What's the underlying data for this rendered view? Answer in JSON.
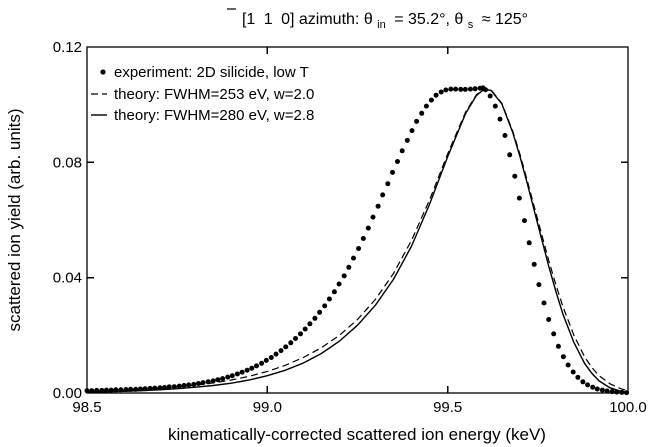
{
  "chart_data": {
    "type": "line",
    "title_parts": {
      "prefix": "[1",
      "overbar_digit": "1",
      "suffix": "0] azimuth: θ",
      "sub_in": "in",
      "middle": "= 35.2°,  θ",
      "sub_s": "s",
      "end": "≈ 125°"
    },
    "xlabel": "kinematically-corrected scattered ion energy (keV)",
    "ylabel": "scattered ion yield (arb. units)",
    "xlim": [
      98.5,
      100.0
    ],
    "ylim": [
      0.0,
      0.12
    ],
    "xticks": [
      98.5,
      99.0,
      99.5,
      100.0
    ],
    "xtick_labels": [
      "98.5",
      "99.0",
      "99.5",
      "100.0"
    ],
    "yticks": [
      0.0,
      0.04,
      0.08,
      0.12
    ],
    "ytick_labels": [
      "0.00",
      "0.04",
      "0.08",
      "0.12"
    ],
    "grid": false,
    "legend_position": "top-left",
    "series": [
      {
        "name": "experiment: 2D silicide, low T",
        "style": "dots",
        "color": "#000000",
        "x": [
          98.5,
          98.513,
          98.527,
          98.541,
          98.554,
          98.567,
          98.58,
          98.594,
          98.608,
          98.621,
          98.635,
          98.648,
          98.661,
          98.675,
          98.688,
          98.702,
          98.715,
          98.728,
          98.742,
          98.756,
          98.769,
          98.782,
          98.796,
          98.809,
          98.822,
          98.836,
          98.85,
          98.863,
          98.876,
          98.89,
          98.903,
          98.917,
          98.93,
          98.944,
          98.957,
          98.97,
          98.984,
          98.997,
          99.011,
          99.024,
          99.038,
          99.051,
          99.065,
          99.078,
          99.092,
          99.105,
          99.118,
          99.132,
          99.145,
          99.159,
          99.172,
          99.186,
          99.199,
          99.213,
          99.226,
          99.239,
          99.253,
          99.266,
          99.28,
          99.293,
          99.307,
          99.32,
          99.334,
          99.347,
          99.361,
          99.374,
          99.388,
          99.401,
          99.414,
          99.428,
          99.441,
          99.455,
          99.468,
          99.482,
          99.495,
          99.509,
          99.522,
          99.536,
          99.549,
          99.563,
          99.576,
          99.59,
          99.598,
          99.605,
          99.618,
          99.632,
          99.645,
          99.659,
          99.672,
          99.686,
          99.699,
          99.713,
          99.726,
          99.74,
          99.753,
          99.767,
          99.78,
          99.794,
          99.807,
          99.821,
          99.834,
          99.848,
          99.861,
          99.875,
          99.888,
          99.902,
          99.915,
          99.929,
          99.942,
          99.956,
          99.969,
          99.983,
          99.996
        ],
        "y": [
          0.0008,
          0.0008,
          0.0009,
          0.0009,
          0.001,
          0.001,
          0.0011,
          0.0011,
          0.0012,
          0.0013,
          0.0013,
          0.0014,
          0.0015,
          0.0016,
          0.0017,
          0.0018,
          0.0019,
          0.0021,
          0.0022,
          0.0024,
          0.0026,
          0.0028,
          0.003,
          0.0033,
          0.0036,
          0.0039,
          0.0042,
          0.0046,
          0.005,
          0.0055,
          0.006,
          0.0066,
          0.0072,
          0.0079,
          0.0086,
          0.0094,
          0.0103,
          0.0113,
          0.0123,
          0.0135,
          0.0147,
          0.016,
          0.0174,
          0.0189,
          0.0205,
          0.0222,
          0.024,
          0.0259,
          0.028,
          0.0302,
          0.0326,
          0.0351,
          0.0378,
          0.0406,
          0.0436,
          0.0468,
          0.0501,
          0.0536,
          0.0572,
          0.061,
          0.0648,
          0.0687,
          0.0726,
          0.0765,
          0.0803,
          0.084,
          0.0876,
          0.091,
          0.0942,
          0.097,
          0.0995,
          0.1016,
          0.1033,
          0.1044,
          0.1051,
          0.1054,
          0.1054,
          0.1053,
          0.1053,
          0.1054,
          0.1055,
          0.1057,
          0.1058,
          0.1052,
          0.103,
          0.0995,
          0.095,
          0.0893,
          0.0826,
          0.0752,
          0.0676,
          0.0598,
          0.0521,
          0.0446,
          0.0376,
          0.0312,
          0.0255,
          0.0205,
          0.0162,
          0.0126,
          0.0097,
          0.0073,
          0.0054,
          0.0039,
          0.0028,
          0.002,
          0.0014,
          0.001,
          0.0007,
          0.0005,
          0.0003,
          0.0002,
          0.0001
        ]
      },
      {
        "name": "theory: FWHM=253 eV, w=2.0",
        "style": "dashed",
        "color": "#000000",
        "x": [
          98.5,
          98.55,
          98.6,
          98.65,
          98.7,
          98.75,
          98.8,
          98.85,
          98.9,
          98.95,
          99.0,
          99.05,
          99.1,
          99.15,
          99.2,
          99.25,
          99.3,
          99.35,
          99.4,
          99.45,
          99.5,
          99.55,
          99.58,
          99.6,
          99.62,
          99.65,
          99.68,
          99.7,
          99.72,
          99.75,
          99.78,
          99.8,
          99.82,
          99.85,
          99.88,
          99.9,
          99.92,
          99.95,
          99.98,
          100.0
        ],
        "y": [
          0.0005,
          0.0007,
          0.0009,
          0.0012,
          0.0016,
          0.0021,
          0.0027,
          0.0035,
          0.0045,
          0.0058,
          0.0075,
          0.0096,
          0.0123,
          0.0157,
          0.02,
          0.0255,
          0.0325,
          0.0415,
          0.053,
          0.067,
          0.083,
          0.0975,
          0.1035,
          0.1055,
          0.1052,
          0.1005,
          0.091,
          0.083,
          0.074,
          0.06,
          0.046,
          0.0375,
          0.0298,
          0.02,
          0.0125,
          0.0088,
          0.006,
          0.0032,
          0.0015,
          0.0008
        ]
      },
      {
        "name": "theory: FWHM=280 eV, w=2.8",
        "style": "solid",
        "color": "#000000",
        "x": [
          98.5,
          98.55,
          98.6,
          98.65,
          98.7,
          98.75,
          98.8,
          98.85,
          98.9,
          98.95,
          99.0,
          99.05,
          99.1,
          99.15,
          99.2,
          99.25,
          99.3,
          99.35,
          99.4,
          99.45,
          99.5,
          99.55,
          99.58,
          99.6,
          99.62,
          99.65,
          99.68,
          99.7,
          99.72,
          99.75,
          99.78,
          99.8,
          99.82,
          99.85,
          99.88,
          99.9,
          99.92,
          99.95,
          99.98,
          100.0
        ],
        "y": [
          0.0003,
          0.0004,
          0.0006,
          0.0008,
          0.0011,
          0.0015,
          0.002,
          0.0026,
          0.0034,
          0.0045,
          0.006,
          0.0079,
          0.0104,
          0.0137,
          0.018,
          0.0235,
          0.0305,
          0.0395,
          0.051,
          0.0655,
          0.082,
          0.097,
          0.1032,
          0.1052,
          0.105,
          0.1003,
          0.0905,
          0.0822,
          0.073,
          0.0585,
          0.044,
          0.0352,
          0.0272,
          0.0175,
          0.0102,
          0.0068,
          0.0042,
          0.0018,
          0.0006,
          0.0002
        ]
      }
    ]
  }
}
